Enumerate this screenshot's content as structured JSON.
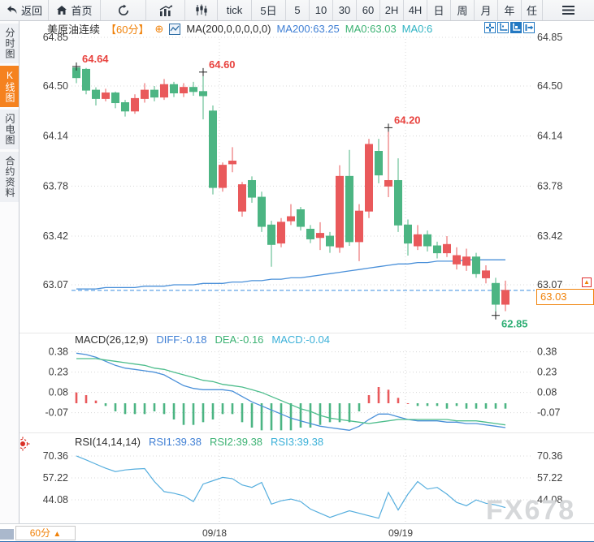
{
  "toolbar": {
    "buttons": [
      {
        "id": "back",
        "label": "返回"
      },
      {
        "id": "home",
        "label": "首页"
      },
      {
        "id": "refresh",
        "label": ""
      },
      {
        "id": "bar-chart",
        "label": ""
      },
      {
        "id": "candlestick",
        "label": ""
      },
      {
        "id": "tick",
        "label": "tick"
      },
      {
        "id": "5d",
        "label": "5日"
      },
      {
        "id": "5",
        "label": "5"
      },
      {
        "id": "10",
        "label": "10"
      },
      {
        "id": "30",
        "label": "30"
      },
      {
        "id": "60",
        "label": "60"
      },
      {
        "id": "2h",
        "label": "2H"
      },
      {
        "id": "4h",
        "label": "4H"
      },
      {
        "id": "day",
        "label": "日"
      },
      {
        "id": "week",
        "label": "周"
      },
      {
        "id": "month",
        "label": "月"
      },
      {
        "id": "year",
        "label": "年"
      },
      {
        "id": "custom",
        "label": "任"
      },
      {
        "id": "menu",
        "label": ""
      }
    ]
  },
  "sidebar": {
    "tabs": [
      {
        "label": "分时图",
        "active": false
      },
      {
        "label": "K线图",
        "active": true
      },
      {
        "label": "闪电图",
        "active": false
      },
      {
        "label": "合约资料",
        "active": false
      }
    ]
  },
  "header": {
    "symbol": "美原油连续",
    "period": "【60分】",
    "add_icon": "⊕",
    "ma_settings": "MA(200,0,0,0,0,0)",
    "ma200_label": "MA200:63.25",
    "ma0a_label": "MA0:63.03",
    "ma0b_label": "MA0:6"
  },
  "macd_header": {
    "title": "MACD(26,12,9)",
    "diff": "DIFF:-0.18",
    "dea": "DEA:-0.16",
    "macd": "MACD:-0.04"
  },
  "rsi_header": {
    "title": "RSI(14,14,14)",
    "rsi1": "RSI1:39.38",
    "rsi2": "RSI2:39.38",
    "rsi3": "RSI3:39.38"
  },
  "bottom": {
    "period": "60分",
    "arrow": "▲",
    "dates": [
      "09/18",
      "09/19"
    ]
  },
  "price_box": {
    "value": "63.03"
  },
  "alert_icon_char": "▲",
  "watermark": "FX678",
  "colors": {
    "up": "#e9595b",
    "down": "#4cb583",
    "ma200": "#4a90d9",
    "diff": "#4a90d9",
    "dea": "#4dbd8c",
    "rsi": "#56aede",
    "grid": "#d8d8d8",
    "axis_text": "#3e3e3e",
    "last_price_line": "#3a8de0",
    "label_red": "#e8433f",
    "label_green": "#2eae74",
    "accent_orange": "#f0820a"
  },
  "chart_data": {
    "type": "candlestick",
    "symbol": "美原油连续",
    "interval": "60min",
    "candle_format": "[open, close, high, low]",
    "y_axis_main": [
      64.85,
      64.5,
      64.14,
      63.78,
      63.42,
      63.07
    ],
    "last_price": 63.03,
    "x_dates": [
      "09/18",
      "09/19"
    ],
    "candles": [
      [
        64.63,
        64.56,
        64.64,
        64.52
      ],
      [
        64.62,
        64.47,
        64.63,
        64.44
      ],
      [
        64.47,
        64.41,
        64.49,
        64.36
      ],
      [
        64.41,
        64.45,
        64.48,
        64.39
      ],
      [
        64.45,
        64.38,
        64.46,
        64.34
      ],
      [
        64.38,
        64.32,
        64.4,
        64.28
      ],
      [
        64.32,
        64.41,
        64.44,
        64.3
      ],
      [
        64.41,
        64.47,
        64.52,
        64.38
      ],
      [
        64.47,
        64.42,
        64.5,
        64.39
      ],
      [
        64.42,
        64.51,
        64.55,
        64.4
      ],
      [
        64.51,
        64.45,
        64.53,
        64.42
      ],
      [
        64.45,
        64.49,
        64.52,
        64.42
      ],
      [
        64.49,
        64.46,
        64.53,
        64.43
      ],
      [
        64.46,
        64.43,
        64.6,
        64.26
      ],
      [
        64.32,
        63.77,
        64.36,
        63.72
      ],
      [
        63.77,
        63.93,
        63.95,
        63.74
      ],
      [
        63.94,
        63.96,
        64.06,
        63.88
      ],
      [
        63.6,
        63.79,
        63.81,
        63.56
      ],
      [
        63.82,
        63.7,
        63.85,
        63.66
      ],
      [
        63.7,
        63.49,
        63.74,
        63.45
      ],
      [
        63.5,
        63.36,
        63.53,
        63.2
      ],
      [
        63.37,
        63.52,
        63.55,
        63.34
      ],
      [
        63.53,
        63.56,
        63.65,
        63.5
      ],
      [
        63.61,
        63.49,
        63.63,
        63.46
      ],
      [
        63.47,
        63.4,
        63.5,
        63.37
      ],
      [
        63.41,
        63.44,
        63.52,
        63.32
      ],
      [
        63.42,
        63.35,
        63.45,
        63.3
      ],
      [
        63.34,
        63.85,
        63.93,
        63.3
      ],
      [
        63.85,
        63.38,
        64.04,
        63.35
      ],
      [
        63.38,
        63.6,
        63.65,
        63.24
      ],
      [
        63.6,
        64.08,
        64.12,
        63.55
      ],
      [
        64.03,
        63.86,
        64.12,
        63.8
      ],
      [
        63.78,
        63.82,
        64.2,
        63.7
      ],
      [
        63.82,
        63.5,
        63.98,
        63.45
      ],
      [
        63.5,
        63.37,
        63.54,
        63.28
      ],
      [
        63.35,
        63.43,
        63.5,
        63.32
      ],
      [
        63.43,
        63.35,
        63.46,
        63.31
      ],
      [
        63.35,
        63.3,
        63.38,
        63.26
      ],
      [
        63.3,
        63.36,
        63.42,
        63.27
      ],
      [
        63.22,
        63.28,
        63.34,
        63.18
      ],
      [
        63.21,
        63.27,
        63.33,
        63.17
      ],
      [
        63.27,
        63.15,
        63.3,
        63.12
      ],
      [
        63.12,
        63.17,
        63.21,
        63.08
      ],
      [
        63.08,
        62.93,
        63.12,
        62.85
      ],
      [
        62.93,
        63.03,
        63.1,
        62.88
      ]
    ],
    "ma200": [
      63.04,
      63.04,
      63.04,
      63.05,
      63.05,
      63.05,
      63.05,
      63.06,
      63.06,
      63.06,
      63.07,
      63.07,
      63.07,
      63.08,
      63.08,
      63.08,
      63.09,
      63.09,
      63.1,
      63.1,
      63.11,
      63.11,
      63.12,
      63.12,
      63.13,
      63.14,
      63.15,
      63.16,
      63.17,
      63.18,
      63.19,
      63.2,
      63.21,
      63.22,
      63.22,
      63.23,
      63.23,
      63.24,
      63.24,
      63.24,
      63.25,
      63.25,
      63.25,
      63.25,
      63.25
    ],
    "annotations": [
      {
        "text": "64.64",
        "index": 0,
        "price": 64.64,
        "side": "high",
        "color": "#e8433f"
      },
      {
        "text": "64.60",
        "index": 13,
        "price": 64.6,
        "side": "high",
        "color": "#e8433f"
      },
      {
        "text": "64.20",
        "index": 32,
        "price": 64.2,
        "side": "high",
        "color": "#e8433f"
      },
      {
        "text": "62.85",
        "index": 43,
        "price": 62.85,
        "side": "low",
        "color": "#2eae74"
      }
    ],
    "macd": {
      "y_axis": [
        0.38,
        0.23,
        0.08,
        -0.07
      ],
      "diff": [
        0.37,
        0.36,
        0.34,
        0.31,
        0.28,
        0.26,
        0.25,
        0.24,
        0.23,
        0.21,
        0.17,
        0.13,
        0.11,
        0.1,
        0.1,
        0.1,
        0.09,
        0.05,
        0.01,
        -0.02,
        -0.05,
        -0.08,
        -0.11,
        -0.13,
        -0.15,
        -0.17,
        -0.18,
        -0.19,
        -0.2,
        -0.17,
        -0.12,
        -0.08,
        -0.08,
        -0.1,
        -0.12,
        -0.13,
        -0.13,
        -0.13,
        -0.14,
        -0.14,
        -0.15,
        -0.15,
        -0.16,
        -0.17,
        -0.18
      ],
      "dea": [
        0.33,
        0.33,
        0.33,
        0.32,
        0.31,
        0.3,
        0.29,
        0.28,
        0.26,
        0.25,
        0.23,
        0.21,
        0.19,
        0.17,
        0.16,
        0.14,
        0.13,
        0.12,
        0.1,
        0.08,
        0.05,
        0.02,
        -0.01,
        -0.04,
        -0.06,
        -0.09,
        -0.11,
        -0.12,
        -0.13,
        -0.14,
        -0.15,
        -0.14,
        -0.13,
        -0.12,
        -0.12,
        -0.12,
        -0.12,
        -0.12,
        -0.12,
        -0.13,
        -0.13,
        -0.13,
        -0.14,
        -0.15,
        -0.16
      ],
      "hist": [
        0.08,
        0.06,
        0.02,
        -0.02,
        -0.06,
        -0.08,
        -0.08,
        -0.08,
        -0.06,
        -0.08,
        -0.12,
        -0.16,
        -0.16,
        -0.14,
        -0.12,
        -0.08,
        -0.08,
        -0.14,
        -0.18,
        -0.2,
        -0.2,
        -0.2,
        -0.2,
        -0.18,
        -0.18,
        -0.16,
        -0.14,
        -0.14,
        -0.14,
        -0.06,
        0.06,
        0.12,
        0.1,
        0.04,
        0.0,
        -0.02,
        -0.02,
        -0.02,
        -0.04,
        -0.02,
        -0.04,
        -0.04,
        -0.04,
        -0.04,
        -0.04
      ]
    },
    "rsi": {
      "y_axis": [
        70.36,
        57.22,
        44.08
      ],
      "values": [
        70.4,
        68.0,
        65.5,
        63.0,
        61.0,
        62.0,
        62.5,
        62.8,
        55.0,
        49.0,
        48.0,
        46.5,
        43.0,
        53.5,
        55.5,
        57.5,
        56.8,
        53.0,
        51.5,
        54.5,
        41.5,
        43.5,
        44.5,
        43.0,
        38.5,
        36.0,
        33.5,
        35.5,
        37.5,
        36.0,
        34.5,
        33.0,
        48.5,
        38.0,
        47.5,
        55.0,
        50.5,
        51.5,
        47.5,
        42.5,
        40.5,
        44.0,
        42.0,
        41.0,
        39.38
      ]
    }
  }
}
